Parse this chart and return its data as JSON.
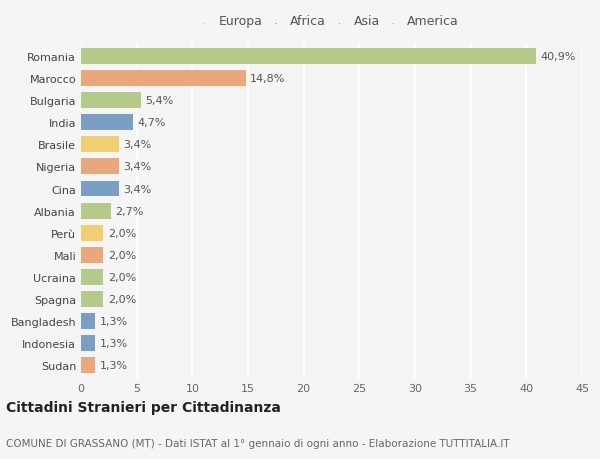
{
  "countries": [
    "Romania",
    "Marocco",
    "Bulgaria",
    "India",
    "Brasile",
    "Nigeria",
    "Cina",
    "Albania",
    "Perù",
    "Mali",
    "Ucraina",
    "Spagna",
    "Bangladesh",
    "Indonesia",
    "Sudan"
  ],
  "values": [
    40.9,
    14.8,
    5.4,
    4.7,
    3.4,
    3.4,
    3.4,
    2.7,
    2.0,
    2.0,
    2.0,
    2.0,
    1.3,
    1.3,
    1.3
  ],
  "labels": [
    "40,9%",
    "14,8%",
    "5,4%",
    "4,7%",
    "3,4%",
    "3,4%",
    "3,4%",
    "2,7%",
    "2,0%",
    "2,0%",
    "2,0%",
    "2,0%",
    "1,3%",
    "1,3%",
    "1,3%"
  ],
  "continents": [
    "Europa",
    "Africa",
    "Europa",
    "Asia",
    "America",
    "Africa",
    "Asia",
    "Europa",
    "America",
    "Africa",
    "Europa",
    "Europa",
    "Asia",
    "Asia",
    "Africa"
  ],
  "continent_colors": {
    "Europa": "#b5c98a",
    "Africa": "#e8a87c",
    "Asia": "#7a9fc2",
    "America": "#f0cf72"
  },
  "legend_order": [
    "Europa",
    "Africa",
    "Asia",
    "America"
  ],
  "title": "Cittadini Stranieri per Cittadinanza",
  "subtitle": "COMUNE DI GRASSANO (MT) - Dati ISTAT al 1° gennaio di ogni anno - Elaborazione TUTTITALIA.IT",
  "xlim": [
    0,
    45
  ],
  "xticks": [
    0,
    5,
    10,
    15,
    20,
    25,
    30,
    35,
    40,
    45
  ],
  "background_color": "#f5f5f5",
  "grid_color": "#ffffff",
  "bar_height": 0.72,
  "title_fontsize": 10,
  "subtitle_fontsize": 7.5,
  "tick_fontsize": 8,
  "label_fontsize": 8,
  "legend_fontsize": 9
}
